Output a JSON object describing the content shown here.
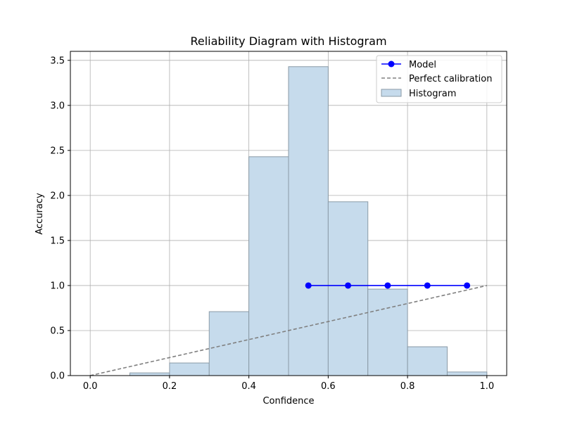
{
  "chart_data": {
    "type": "bar",
    "title": "Reliability Diagram with Histogram",
    "xlabel": "Confidence",
    "ylabel": "Accuracy",
    "xlim": [
      -0.05,
      1.05
    ],
    "ylim": [
      0,
      3.6
    ],
    "xticks": [
      0.0,
      0.2,
      0.4,
      0.6,
      0.8,
      1.0
    ],
    "xtick_labels": [
      "0.0",
      "0.2",
      "0.4",
      "0.6",
      "0.8",
      "1.0"
    ],
    "yticks": [
      0.0,
      0.5,
      1.0,
      1.5,
      2.0,
      2.5,
      3.0,
      3.5
    ],
    "ytick_labels": [
      "0.0",
      "0.5",
      "1.0",
      "1.5",
      "2.0",
      "2.5",
      "3.0",
      "3.5"
    ],
    "grid": true,
    "legend_position": "top-right",
    "histogram": {
      "name": "Histogram",
      "color": "#c6dbec",
      "edge_color": "#8a9aa6",
      "bins": [
        {
          "x0": 0.1,
          "x1": 0.2,
          "value": 0.03
        },
        {
          "x0": 0.2,
          "x1": 0.3,
          "value": 0.14
        },
        {
          "x0": 0.3,
          "x1": 0.4,
          "value": 0.71
        },
        {
          "x0": 0.4,
          "x1": 0.5,
          "value": 2.43
        },
        {
          "x0": 0.5,
          "x1": 0.6,
          "value": 3.43
        },
        {
          "x0": 0.6,
          "x1": 0.7,
          "value": 1.93
        },
        {
          "x0": 0.7,
          "x1": 0.8,
          "value": 0.96
        },
        {
          "x0": 0.8,
          "x1": 0.9,
          "value": 0.32
        },
        {
          "x0": 0.9,
          "x1": 1.0,
          "value": 0.04
        }
      ]
    },
    "series": [
      {
        "name": "Model",
        "type": "line",
        "color": "#0000ff",
        "marker": "circle",
        "x": [
          0.55,
          0.65,
          0.75,
          0.85,
          0.95
        ],
        "y": [
          1.0,
          1.0,
          1.0,
          1.0,
          1.0
        ]
      },
      {
        "name": "Perfect calibration",
        "type": "line",
        "style": "dashed",
        "color": "#808080",
        "x": [
          0.0,
          1.0
        ],
        "y": [
          0.0,
          1.0
        ]
      }
    ],
    "legend": [
      "Model",
      "Perfect calibration",
      "Histogram"
    ]
  }
}
